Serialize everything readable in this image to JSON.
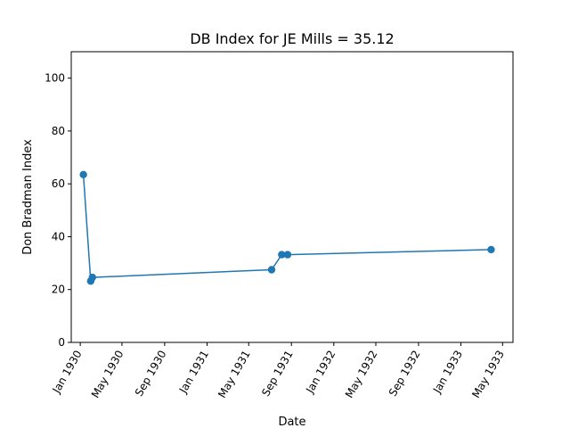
{
  "chart_data": {
    "type": "line",
    "title": "DB Index for JE Mills = 35.12",
    "xlabel": "Date",
    "ylabel": "Don Bradman Index",
    "xlim": [
      "1929-12-06",
      "1933-05-31"
    ],
    "ylim": [
      0,
      110
    ],
    "grid": false,
    "series_color": "#1f77b4",
    "x_ticks": [
      {
        "date": "1930-01-01",
        "label": "Jan 1930"
      },
      {
        "date": "1930-05-01",
        "label": "May 1930"
      },
      {
        "date": "1930-09-01",
        "label": "Sep 1930"
      },
      {
        "date": "1931-01-01",
        "label": "Jan 1931"
      },
      {
        "date": "1931-05-01",
        "label": "May 1931"
      },
      {
        "date": "1931-09-01",
        "label": "Sep 1931"
      },
      {
        "date": "1932-01-01",
        "label": "Jan 1932"
      },
      {
        "date": "1932-05-01",
        "label": "May 1932"
      },
      {
        "date": "1932-09-01",
        "label": "Sep 1932"
      },
      {
        "date": "1933-01-01",
        "label": "Jan 1933"
      },
      {
        "date": "1933-05-01",
        "label": "May 1933"
      }
    ],
    "y_ticks": [
      0,
      20,
      40,
      60,
      80,
      100
    ],
    "series": [
      {
        "x": [
          "1930-01-10",
          "1930-01-31",
          "1930-02-05",
          "1931-07-06",
          "1931-08-04",
          "1931-08-21",
          "1933-03-29"
        ],
        "y": [
          63.5,
          23.2,
          24.6,
          27.5,
          33.2,
          33.2,
          35.12
        ]
      }
    ]
  }
}
